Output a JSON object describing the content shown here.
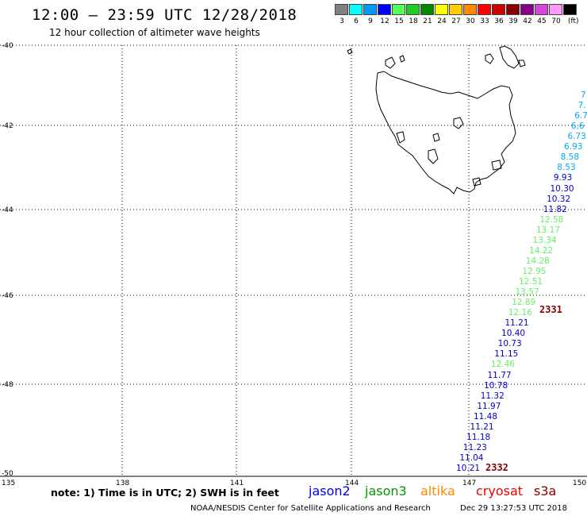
{
  "header": {
    "title": "12:00 – 23:59 UTC 12/28/2018",
    "subtitle": "12 hour collection of altimeter wave heights"
  },
  "colorbar": {
    "unit_label": "(ft)",
    "swatches": [
      {
        "label": "3",
        "color": "#808080"
      },
      {
        "label": "6",
        "color": "#00ffff"
      },
      {
        "label": "9",
        "color": "#0099ff"
      },
      {
        "label": "12",
        "color": "#0000ff"
      },
      {
        "label": "15",
        "color": "#55ff55"
      },
      {
        "label": "18",
        "color": "#22cc22"
      },
      {
        "label": "21",
        "color": "#008800"
      },
      {
        "label": "24",
        "color": "#ffff00"
      },
      {
        "label": "27",
        "color": "#ffcc00"
      },
      {
        "label": "30",
        "color": "#ff8800"
      },
      {
        "label": "33",
        "color": "#ff0000"
      },
      {
        "label": "36",
        "color": "#cc0000"
      },
      {
        "label": "39",
        "color": "#880000"
      },
      {
        "label": "42",
        "color": "#880088"
      },
      {
        "label": "45",
        "color": "#dd44dd"
      },
      {
        "label": "70",
        "color": "#ff99ff"
      },
      {
        "label": "",
        "color": "#000000"
      }
    ]
  },
  "map": {
    "lat_labels": [
      "-40",
      "-42",
      "-44",
      "-46",
      "-48",
      "-50"
    ],
    "lon_labels": [
      "135",
      "138",
      "141",
      "144",
      "147",
      "150"
    ]
  },
  "track": {
    "readings": [
      {
        "text": "7.",
        "color": "#00aaee"
      },
      {
        "text": "7.",
        "color": "#00aaee"
      },
      {
        "text": "6.7",
        "color": "#00aaee"
      },
      {
        "text": "6.6",
        "color": "#00aaee"
      },
      {
        "text": "6.73",
        "color": "#00aaee"
      },
      {
        "text": "6.93",
        "color": "#00aaee"
      },
      {
        "text": "8.58",
        "color": "#00aaee"
      },
      {
        "text": "8.53",
        "color": "#00aaee"
      },
      {
        "text": "9.93",
        "color": "#0000cc"
      },
      {
        "text": "10.30",
        "color": "#0000cc"
      },
      {
        "text": "10.32",
        "color": "#0000cc"
      },
      {
        "text": "11.82",
        "color": "#0000cc"
      },
      {
        "text": "12.58",
        "color": "#66ee66"
      },
      {
        "text": "13.17",
        "color": "#66ee66"
      },
      {
        "text": "13.34",
        "color": "#66ee66"
      },
      {
        "text": "14.22",
        "color": "#66ee66"
      },
      {
        "text": "14.28",
        "color": "#66ee66"
      },
      {
        "text": "12.95",
        "color": "#66ee66"
      },
      {
        "text": "12.51",
        "color": "#66ee66"
      },
      {
        "text": "13.57",
        "color": "#66ee66"
      },
      {
        "text": "12.89",
        "color": "#66ee66"
      },
      {
        "text": "12.16",
        "color": "#66ee66"
      },
      {
        "text": "11.21",
        "color": "#0000cc"
      },
      {
        "text": "10.40",
        "color": "#0000cc"
      },
      {
        "text": "10.73",
        "color": "#0000cc"
      },
      {
        "text": "11.15",
        "color": "#0000cc"
      },
      {
        "text": "12.46",
        "color": "#66ee66"
      },
      {
        "text": "11.77",
        "color": "#0000cc"
      },
      {
        "text": "10.78",
        "color": "#0000cc"
      },
      {
        "text": "11.32",
        "color": "#0000cc"
      },
      {
        "text": "11.97",
        "color": "#0000cc"
      },
      {
        "text": "11.48",
        "color": "#0000cc"
      },
      {
        "text": "11.21",
        "color": "#0000cc"
      },
      {
        "text": "11.18",
        "color": "#0000cc"
      },
      {
        "text": "11.23",
        "color": "#0000cc"
      },
      {
        "text": "11.04",
        "color": "#0000cc"
      },
      {
        "text": "10.21",
        "color": "#0000cc"
      }
    ],
    "time_start": "2331",
    "time_end": "2332",
    "time_color": "#880000"
  },
  "footer": {
    "note": "note: 1) Time is in UTC; 2) SWH is in feet",
    "legend": [
      {
        "label": "jason2",
        "color": "#0000ee"
      },
      {
        "label": "jason3",
        "color": "#009900"
      },
      {
        "label": "altika",
        "color": "#ff8800"
      },
      {
        "label": "cryosat",
        "color": "#ee0000"
      },
      {
        "label": "s3a",
        "color": "#880000"
      }
    ],
    "credit": "NOAA/NESDIS Center for Satellite Applications and Research",
    "timestamp": "Dec 29 13:27:53 UTC 2018"
  }
}
